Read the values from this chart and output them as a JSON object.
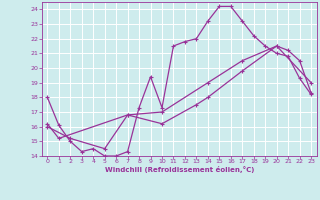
{
  "xlabel": "Windchill (Refroidissement éolien,°C)",
  "bg_color": "#ceeced",
  "grid_color": "#b0d8da",
  "line_color": "#993399",
  "xlim": [
    -0.5,
    23.5
  ],
  "ylim": [
    14,
    24.5
  ],
  "xticks": [
    0,
    1,
    2,
    3,
    4,
    5,
    6,
    7,
    8,
    9,
    10,
    11,
    12,
    13,
    14,
    15,
    16,
    17,
    18,
    19,
    20,
    21,
    22,
    23
  ],
  "yticks": [
    14,
    15,
    16,
    17,
    18,
    19,
    20,
    21,
    22,
    23,
    24
  ],
  "line1_x": [
    0,
    1,
    2,
    3,
    4,
    5,
    6,
    7,
    8,
    9,
    10,
    11,
    12,
    13,
    14,
    15,
    16,
    17,
    18,
    19,
    20,
    21,
    22,
    23
  ],
  "line1_y": [
    18.0,
    16.1,
    15.0,
    14.3,
    14.5,
    14.0,
    14.0,
    14.3,
    17.3,
    19.4,
    17.3,
    21.5,
    21.8,
    22.0,
    23.2,
    24.2,
    24.2,
    23.2,
    22.2,
    21.5,
    21.0,
    20.8,
    19.3,
    18.2
  ],
  "line2_x": [
    0,
    1,
    7,
    10,
    14,
    17,
    20,
    21,
    22,
    23
  ],
  "line2_y": [
    16.2,
    15.2,
    16.8,
    17.0,
    19.0,
    20.5,
    21.5,
    21.2,
    20.5,
    18.3
  ],
  "line3_x": [
    0,
    2,
    5,
    7,
    10,
    13,
    14,
    17,
    20,
    23
  ],
  "line3_y": [
    16.0,
    15.2,
    14.5,
    16.8,
    16.2,
    17.5,
    18.0,
    19.8,
    21.5,
    19.0
  ]
}
